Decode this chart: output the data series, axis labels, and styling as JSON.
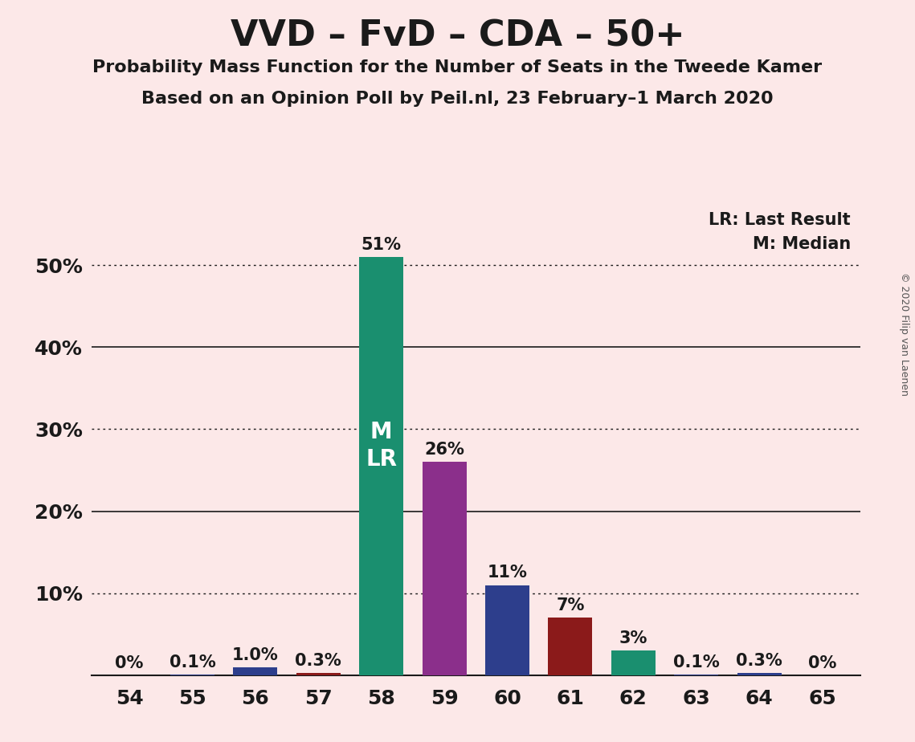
{
  "title": "VVD – FvD – CDA – 50+",
  "subtitle1": "Probability Mass Function for the Number of Seats in the Tweede Kamer",
  "subtitle2": "Based on an Opinion Poll by Peil.nl, 23 February–1 March 2020",
  "copyright": "© 2020 Filip van Laenen",
  "categories": [
    54,
    55,
    56,
    57,
    58,
    59,
    60,
    61,
    62,
    63,
    64,
    65
  ],
  "values": [
    0.001,
    0.1,
    1.0,
    0.3,
    51.0,
    26.0,
    11.0,
    7.0,
    3.0,
    0.1,
    0.3,
    0.001
  ],
  "labels": [
    "0%",
    "0.1%",
    "1.0%",
    "0.3%",
    "51%",
    "26%",
    "11%",
    "7%",
    "3%",
    "0.1%",
    "0.3%",
    "0%"
  ],
  "bar_colors": [
    "#2d3e8c",
    "#2d3e8c",
    "#2d3e8c",
    "#8b1a1a",
    "#1a8f6f",
    "#8b2f8b",
    "#2d3e8c",
    "#8b1a1a",
    "#1a8f6f",
    "#2d3e8c",
    "#2d3e8c",
    "#2d3e8c"
  ],
  "background_color": "#fce8e8",
  "ytick_labels": [
    "",
    "10%",
    "20%",
    "30%",
    "40%",
    "50%"
  ],
  "ytick_values": [
    0,
    10,
    20,
    30,
    40,
    50
  ],
  "ylim": [
    0,
    57
  ],
  "median_seat": 58,
  "last_result_seat": 58,
  "legend_lr": "LR: Last Result",
  "legend_m": "M: Median",
  "solid_lines": [
    20,
    40
  ],
  "dotted_lines": [
    10,
    30,
    50
  ],
  "title_fontsize": 32,
  "subtitle_fontsize": 16,
  "label_fontsize": 15,
  "tick_fontsize": 18,
  "mlr_fontsize": 20
}
